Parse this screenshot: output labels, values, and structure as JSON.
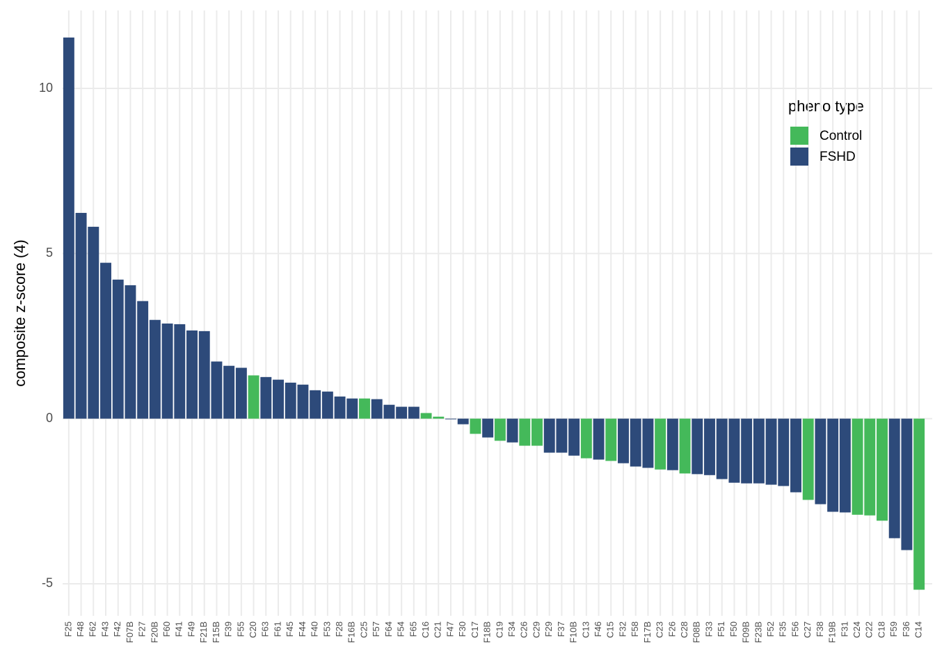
{
  "chart_data": {
    "type": "bar",
    "y_label": "composite z-score (4)",
    "categories": [
      "F25",
      "F48",
      "F62",
      "F43",
      "F42",
      "F07B",
      "F27",
      "F20B",
      "F60",
      "F41",
      "F49",
      "F21B",
      "F15B",
      "F39",
      "F55",
      "C20",
      "F63",
      "F61",
      "F45",
      "F44",
      "F40",
      "F53",
      "F28",
      "F16B",
      "C25",
      "F57",
      "F64",
      "F54",
      "F65",
      "C16",
      "C21",
      "F47",
      "F30",
      "C17",
      "F18B",
      "C19",
      "F34",
      "C26",
      "C29",
      "F29",
      "F37",
      "F10B",
      "C13",
      "F46",
      "C15",
      "F32",
      "F58",
      "F17B",
      "C23",
      "F26",
      "C28",
      "F08B",
      "F33",
      "F51",
      "F50",
      "F09B",
      "F23B",
      "F52",
      "F35",
      "F56",
      "C27",
      "F38",
      "F19B",
      "F31",
      "C24",
      "C22",
      "C18",
      "F59",
      "F36",
      "C14"
    ],
    "values": [
      11.54,
      6.23,
      5.81,
      4.72,
      4.21,
      4.04,
      3.56,
      2.99,
      2.88,
      2.86,
      2.67,
      2.65,
      1.73,
      1.6,
      1.54,
      1.31,
      1.26,
      1.18,
      1.09,
      1.03,
      0.86,
      0.82,
      0.67,
      0.61,
      0.61,
      0.59,
      0.42,
      0.36,
      0.36,
      0.17,
      0.06,
      -0.02,
      -0.17,
      -0.46,
      -0.57,
      -0.67,
      -0.72,
      -0.82,
      -0.82,
      -1.03,
      -1.03,
      -1.12,
      -1.2,
      -1.24,
      -1.28,
      -1.35,
      -1.45,
      -1.49,
      -1.54,
      -1.56,
      -1.66,
      -1.68,
      -1.71,
      -1.83,
      -1.94,
      -1.96,
      -1.96,
      -2.0,
      -2.04,
      -2.23,
      -2.46,
      -2.59,
      -2.82,
      -2.84,
      -2.91,
      -2.93,
      -3.09,
      -3.62,
      -3.98,
      -5.18
    ],
    "groups": [
      "FSHD",
      "FSHD",
      "FSHD",
      "FSHD",
      "FSHD",
      "FSHD",
      "FSHD",
      "FSHD",
      "FSHD",
      "FSHD",
      "FSHD",
      "FSHD",
      "FSHD",
      "FSHD",
      "FSHD",
      "Control",
      "FSHD",
      "FSHD",
      "FSHD",
      "FSHD",
      "FSHD",
      "FSHD",
      "FSHD",
      "FSHD",
      "Control",
      "FSHD",
      "FSHD",
      "FSHD",
      "FSHD",
      "Control",
      "Control",
      "FSHD",
      "FSHD",
      "Control",
      "FSHD",
      "Control",
      "FSHD",
      "Control",
      "Control",
      "FSHD",
      "FSHD",
      "FSHD",
      "Control",
      "FSHD",
      "Control",
      "FSHD",
      "FSHD",
      "FSHD",
      "Control",
      "FSHD",
      "Control",
      "FSHD",
      "FSHD",
      "FSHD",
      "FSHD",
      "FSHD",
      "FSHD",
      "FSHD",
      "FSHD",
      "FSHD",
      "Control",
      "FSHD",
      "FSHD",
      "FSHD",
      "Control",
      "Control",
      "Control",
      "FSHD",
      "FSHD",
      "Control"
    ],
    "legend": {
      "title": "pheno type",
      "items": [
        {
          "name": "Control",
          "color": "#44b95a"
        },
        {
          "name": "FSHD",
          "color": "#2d4a7a"
        }
      ]
    },
    "ylim": [
      -5.97,
      12.36
    ],
    "yticks": [
      -5,
      0,
      5,
      10
    ],
    "grid": true
  }
}
